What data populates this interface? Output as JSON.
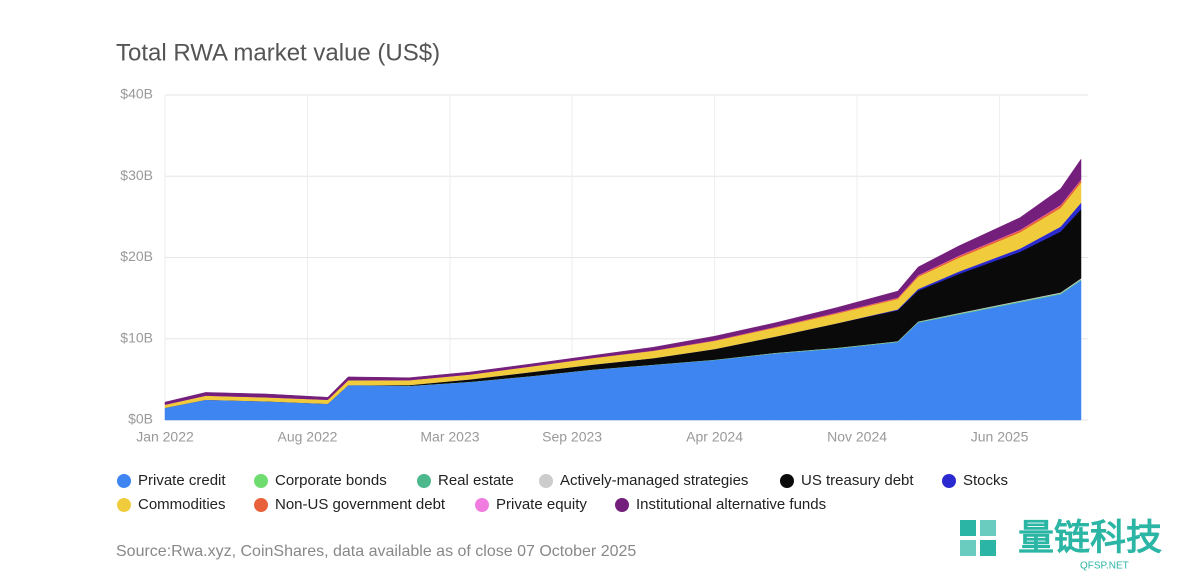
{
  "chart_data": {
    "type": "stacked-area",
    "title": "Total RWA market value (US$)",
    "source": "Source:Rwa.xyz, CoinShares, data available as of close 07 October 2025",
    "x": [
      "2022-01",
      "2022-03",
      "2022-06",
      "2022-09",
      "2022-10",
      "2023-01",
      "2023-04",
      "2023-07",
      "2023-10",
      "2024-01",
      "2024-04",
      "2024-07",
      "2024-10",
      "2025-01",
      "2025-02",
      "2025-04",
      "2025-07",
      "2025-09",
      "2025-10"
    ],
    "xlim": [
      "2022-01",
      "2025-10"
    ],
    "xticks": [
      {
        "value": "2022-01",
        "label": "Jan 2022"
      },
      {
        "value": "2022-08",
        "label": "Aug 2022"
      },
      {
        "value": "2023-03",
        "label": "Mar 2023"
      },
      {
        "value": "2023-09",
        "label": "Sep 2023"
      },
      {
        "value": "2024-04",
        "label": "Apr 2024"
      },
      {
        "value": "2024-11",
        "label": "Nov 2024"
      },
      {
        "value": "2025-06",
        "label": "Jun 2025"
      }
    ],
    "ylim": [
      0,
      40
    ],
    "yticks": [
      {
        "value": 0,
        "label": "$0B"
      },
      {
        "value": 10,
        "label": "$10B"
      },
      {
        "value": 20,
        "label": "$20B"
      },
      {
        "value": 30,
        "label": "$30B"
      },
      {
        "value": 40,
        "label": "$40B"
      }
    ],
    "grid": true,
    "series": [
      {
        "name": "Private credit",
        "color": "#3f85f2",
        "values": [
          1.5,
          2.5,
          2.3,
          2.0,
          4.3,
          4.2,
          4.7,
          5.4,
          6.2,
          6.8,
          7.4,
          8.2,
          8.8,
          9.6,
          12.0,
          13.0,
          14.5,
          15.5,
          17.2
        ]
      },
      {
        "name": "Corporate bonds",
        "color": "#6fdc6f",
        "values": [
          0,
          0,
          0,
          0,
          0,
          0,
          0,
          0,
          0,
          0,
          0,
          0.02,
          0.03,
          0.03,
          0.04,
          0.05,
          0.05,
          0.05,
          0.06
        ]
      },
      {
        "name": "Real estate",
        "color": "#4cb88c",
        "values": [
          0,
          0,
          0,
          0,
          0,
          0.01,
          0.01,
          0.01,
          0.02,
          0.02,
          0.02,
          0.03,
          0.03,
          0.03,
          0.04,
          0.05,
          0.05,
          0.05,
          0.06
        ]
      },
      {
        "name": "Actively-managed strategies",
        "color": "#cccccc",
        "values": [
          0,
          0,
          0,
          0,
          0,
          0,
          0,
          0,
          0,
          0,
          0.02,
          0.03,
          0.04,
          0.05,
          0.06,
          0.08,
          0.1,
          0.1,
          0.12
        ]
      },
      {
        "name": "US treasury debt",
        "color": "#0a0a0a",
        "values": [
          0,
          0,
          0,
          0,
          0,
          0.1,
          0.3,
          0.5,
          0.6,
          0.8,
          1.3,
          2.0,
          3.0,
          3.8,
          3.8,
          4.8,
          6.0,
          7.5,
          8.5
        ]
      },
      {
        "name": "Stocks",
        "color": "#2a2ad0",
        "values": [
          0,
          0,
          0,
          0,
          0,
          0,
          0,
          0,
          0,
          0,
          0,
          0,
          0,
          0.1,
          0.2,
          0.3,
          0.4,
          0.6,
          0.8
        ]
      },
      {
        "name": "Commodities",
        "color": "#f0cc3c",
        "values": [
          0.4,
          0.5,
          0.5,
          0.5,
          0.6,
          0.6,
          0.6,
          0.7,
          0.8,
          0.9,
          1.0,
          1.1,
          1.2,
          1.3,
          1.5,
          1.7,
          2.0,
          2.3,
          2.5
        ]
      },
      {
        "name": "Non-US government debt",
        "color": "#e8613a",
        "values": [
          0,
          0,
          0,
          0,
          0,
          0,
          0,
          0,
          0.02,
          0.03,
          0.05,
          0.08,
          0.1,
          0.12,
          0.15,
          0.2,
          0.25,
          0.3,
          0.3
        ]
      },
      {
        "name": "Private equity",
        "color": "#f07ce0",
        "values": [
          0,
          0,
          0,
          0,
          0,
          0,
          0,
          0,
          0,
          0.01,
          0.02,
          0.02,
          0.03,
          0.03,
          0.04,
          0.05,
          0.05,
          0.06,
          0.06
        ]
      },
      {
        "name": "Institutional alternative funds",
        "color": "#751f7c",
        "values": [
          0.3,
          0.4,
          0.4,
          0.3,
          0.4,
          0.3,
          0.3,
          0.3,
          0.3,
          0.4,
          0.5,
          0.5,
          0.6,
          0.8,
          1.0,
          1.2,
          1.5,
          2.0,
          2.5
        ]
      }
    ]
  },
  "watermark": {
    "name": "量链科技",
    "site": "QFSP.NET"
  }
}
